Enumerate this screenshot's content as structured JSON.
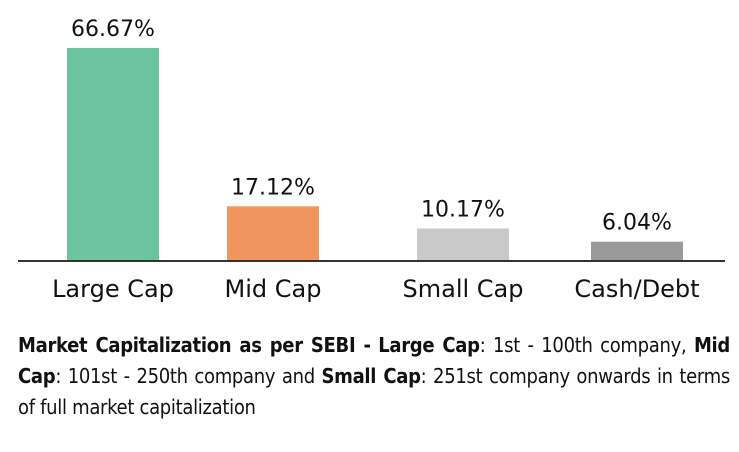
{
  "chart_data": {
    "type": "bar",
    "categories": [
      "Large Cap",
      "Mid Cap",
      "Small Cap",
      "Cash/Debt"
    ],
    "values": [
      66.67,
      17.12,
      10.17,
      6.04
    ],
    "value_labels": [
      "66.67%",
      "17.12%",
      "10.17%",
      "6.04%"
    ],
    "colors": [
      "#6cc49f",
      "#f0955d",
      "#c9c9c9",
      "#999999"
    ],
    "ylim": [
      0,
      70
    ],
    "grid": false,
    "axis_color": "#333333"
  },
  "footnote": {
    "title": "Market Capitalization as per SEBI -",
    "large_label": "Large Cap",
    "large_text": ": 1st - 100th company, ",
    "mid_label": "Mid Cap",
    "mid_text": ": 101st - 250th company and ",
    "small_label": "Small Cap",
    "small_text": ": 251st company onwards in terms of full market capitalization"
  }
}
